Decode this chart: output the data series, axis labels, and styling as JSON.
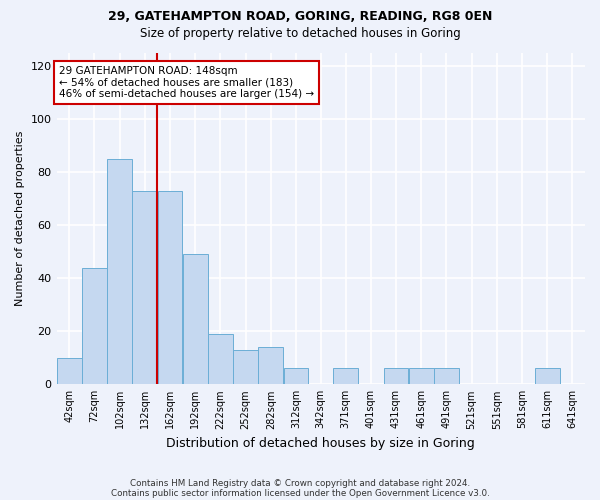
{
  "title1": "29, GATEHAMPTON ROAD, GORING, READING, RG8 0EN",
  "title2": "Size of property relative to detached houses in Goring",
  "xlabel": "Distribution of detached houses by size in Goring",
  "ylabel": "Number of detached properties",
  "categories": [
    "42sqm",
    "72sqm",
    "102sqm",
    "132sqm",
    "162sqm",
    "192sqm",
    "222sqm",
    "252sqm",
    "282sqm",
    "312sqm",
    "342sqm",
    "371sqm",
    "401sqm",
    "431sqm",
    "461sqm",
    "491sqm",
    "521sqm",
    "551sqm",
    "581sqm",
    "611sqm",
    "641sqm"
  ],
  "values": [
    10,
    44,
    85,
    73,
    73,
    49,
    19,
    13,
    14,
    6,
    0,
    6,
    0,
    6,
    6,
    6,
    0,
    0,
    0,
    6,
    0
  ],
  "bar_color": "#c5d8f0",
  "bar_edge_color": "#6baed6",
  "background_color": "#eef2fb",
  "grid_color": "#ffffff",
  "vline_color": "#cc0000",
  "annotation_text": "29 GATEHAMPTON ROAD: 148sqm\n← 54% of detached houses are smaller (183)\n46% of semi-detached houses are larger (154) →",
  "annotation_box_color": "#cc0000",
  "footer1": "Contains HM Land Registry data © Crown copyright and database right 2024.",
  "footer2": "Contains public sector information licensed under the Open Government Licence v3.0.",
  "ylim": [
    0,
    125
  ],
  "yticks": [
    0,
    20,
    40,
    60,
    80,
    100,
    120
  ],
  "bin_edges": [
    27,
    57,
    87,
    117,
    147,
    177,
    207,
    237,
    267,
    297,
    327,
    356,
    386,
    416,
    446,
    476,
    506,
    536,
    566,
    596,
    626,
    656
  ]
}
